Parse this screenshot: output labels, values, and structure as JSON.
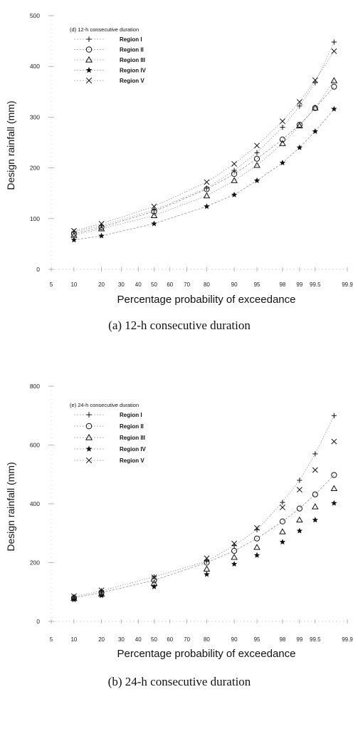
{
  "chart_data": [
    {
      "type": "scatter",
      "subtitle": "(d) 12-h consecutive duration",
      "caption": "(a) 12-h consecutive duration",
      "xlabel": "Percentage probability of exceedance",
      "ylabel": "Design rainfall (mm)",
      "x_scale": "normal-probability",
      "x_ticks": [
        "5",
        "10",
        "20",
        "30",
        "40",
        "50",
        "60",
        "70",
        "80",
        "90",
        "95",
        "98",
        "99",
        "99.5",
        "99.9"
      ],
      "y_ticks": [
        "0",
        "100",
        "200",
        "300",
        "400",
        "500"
      ],
      "ylim": [
        0,
        500
      ],
      "grid": false,
      "legend_position": "upper-left",
      "x": [
        10,
        20,
        50,
        80,
        90,
        95,
        98,
        99,
        99.5,
        99.8
      ],
      "series": [
        {
          "name": "Region I",
          "marker": "+",
          "line": true,
          "values": [
            74,
            86,
            117,
            160,
            195,
            230,
            280,
            322,
            368,
            448
          ]
        },
        {
          "name": "Region II",
          "marker": "o",
          "line": true,
          "values": [
            70,
            83,
            114,
            158,
            188,
            218,
            256,
            285,
            318,
            360
          ]
        },
        {
          "name": "Region III",
          "marker": "triangle",
          "line": true,
          "values": [
            67,
            80,
            106,
            145,
            175,
            205,
            248,
            283,
            318,
            372
          ]
        },
        {
          "name": "Region IV",
          "marker": "star",
          "line": true,
          "values": [
            58,
            66,
            90,
            124,
            147,
            175,
            210,
            240,
            272,
            316
          ]
        },
        {
          "name": "Region V",
          "marker": "x",
          "line": true,
          "values": [
            76,
            90,
            124,
            172,
            208,
            244,
            292,
            330,
            373,
            430
          ]
        }
      ]
    },
    {
      "type": "scatter",
      "subtitle": "(e) 24-h consecutive duration",
      "caption": "(b) 24-h consecutive duration",
      "xlabel": "Percentage probability of exceedance",
      "ylabel": "Design rainfall (mm)",
      "x_scale": "normal-probability",
      "x_ticks": [
        "5",
        "10",
        "20",
        "30",
        "40",
        "50",
        "60",
        "70",
        "80",
        "90",
        "95",
        "98",
        "99",
        "99.5",
        "99.9"
      ],
      "y_ticks": [
        "0",
        "200",
        "400",
        "600",
        "800"
      ],
      "ylim": [
        0,
        800
      ],
      "grid": false,
      "legend_position": "upper-left",
      "x": [
        10,
        20,
        50,
        80,
        90,
        95,
        98,
        99,
        99.5,
        99.8
      ],
      "series": [
        {
          "name": "Region I",
          "marker": "+",
          "line": true,
          "values": [
            84,
            104,
            152,
            205,
            258,
            312,
            405,
            480,
            570,
            700
          ]
        },
        {
          "name": "Region II",
          "marker": "o",
          "line": true,
          "values": [
            80,
            98,
            140,
            200,
            240,
            282,
            340,
            384,
            432,
            498
          ]
        },
        {
          "name": "Region III",
          "marker": "triangle",
          "line": false,
          "values": [
            78,
            93,
            130,
            178,
            218,
            252,
            305,
            345,
            390,
            452
          ]
        },
        {
          "name": "Region IV",
          "marker": "star",
          "line": false,
          "values": [
            74,
            88,
            118,
            160,
            195,
            225,
            270,
            308,
            345,
            402
          ]
        },
        {
          "name": "Region V",
          "marker": "x",
          "line": false,
          "values": [
            86,
            106,
            150,
            215,
            265,
            318,
            388,
            448,
            515,
            612
          ]
        }
      ]
    }
  ]
}
